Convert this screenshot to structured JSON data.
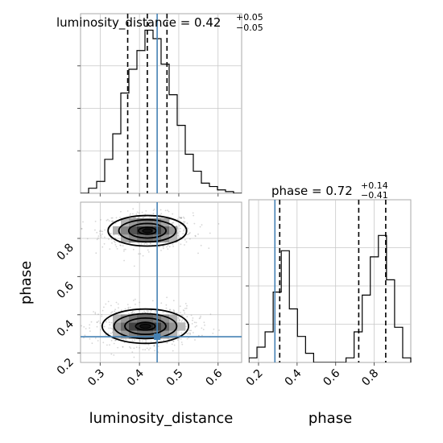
{
  "chart_data": {
    "type": "corner",
    "parameters": [
      "luminosity_distance",
      "phase"
    ],
    "truth_color": "#4682b4",
    "truths": {
      "luminosity_distance": 0.445,
      "phase": 0.285
    },
    "panels": {
      "luminosity_distance_hist": {
        "title_main": "luminosity_distance = 0.42",
        "title_sup": "+0.05",
        "title_sub": "−0.05",
        "xlim": [
          0.25,
          0.66
        ],
        "ylim": [
          0,
          1.0
        ],
        "bin_edges": [
          0.25,
          0.2705,
          0.291,
          0.3115,
          0.332,
          0.3525,
          0.373,
          0.3935,
          0.414,
          0.4345,
          0.455,
          0.4755,
          0.496,
          0.5165,
          0.537,
          0.5575,
          0.578,
          0.5985,
          0.619,
          0.6395,
          0.66
        ],
        "counts": [
          0.0,
          0.03,
          0.07,
          0.2,
          0.35,
          0.59,
          0.73,
          0.84,
          0.96,
          0.91,
          0.76,
          0.58,
          0.4,
          0.23,
          0.13,
          0.06,
          0.04,
          0.02,
          0.01,
          0.0
        ],
        "quantiles": [
          0.37,
          0.42,
          0.47
        ],
        "truth": 0.445
      },
      "phase_hist": {
        "title_main": "phase = 0.72",
        "title_sup": "+0.14",
        "title_sub": "−0.41",
        "xlim": [
          0.15,
          0.99
        ],
        "ylim": [
          0,
          1.0
        ],
        "bin_edges": [
          0.15,
          0.192,
          0.234,
          0.276,
          0.318,
          0.36,
          0.402,
          0.444,
          0.486,
          0.528,
          0.57,
          0.612,
          0.654,
          0.696,
          0.738,
          0.78,
          0.822,
          0.864,
          0.906,
          0.948,
          0.99
        ],
        "counts": [
          0.03,
          0.1,
          0.2,
          0.46,
          0.73,
          0.35,
          0.17,
          0.06,
          0.0,
          0.0,
          0.0,
          0.0,
          0.03,
          0.2,
          0.44,
          0.69,
          0.83,
          0.54,
          0.23,
          0.03
        ],
        "quantiles": [
          0.31,
          0.72,
          0.86
        ],
        "truth": 0.285
      },
      "joint": {
        "xlim": [
          0.25,
          0.66
        ],
        "ylim": [
          0.15,
          0.99
        ],
        "truth": [
          0.445,
          0.285
        ],
        "modes": [
          {
            "x": 0.42,
            "y": 0.84,
            "sx": 0.05,
            "sy": 0.04
          },
          {
            "x": 0.415,
            "y": 0.34,
            "sx": 0.055,
            "sy": 0.045
          }
        ]
      }
    },
    "axes": {
      "luminosity_distance_ticks": [
        "0.3",
        "0.4",
        "0.5",
        "0.6"
      ],
      "luminosity_distance_tick_values": [
        0.3,
        0.4,
        0.5,
        0.6
      ],
      "phase_ticks": [
        "0.2",
        "0.4",
        "0.6",
        "0.8"
      ],
      "phase_tick_values": [
        0.2,
        0.4,
        0.6,
        0.8
      ],
      "xlabel_left": "luminosity_distance",
      "xlabel_right": "phase",
      "ylabel": "phase"
    },
    "grid": true
  }
}
